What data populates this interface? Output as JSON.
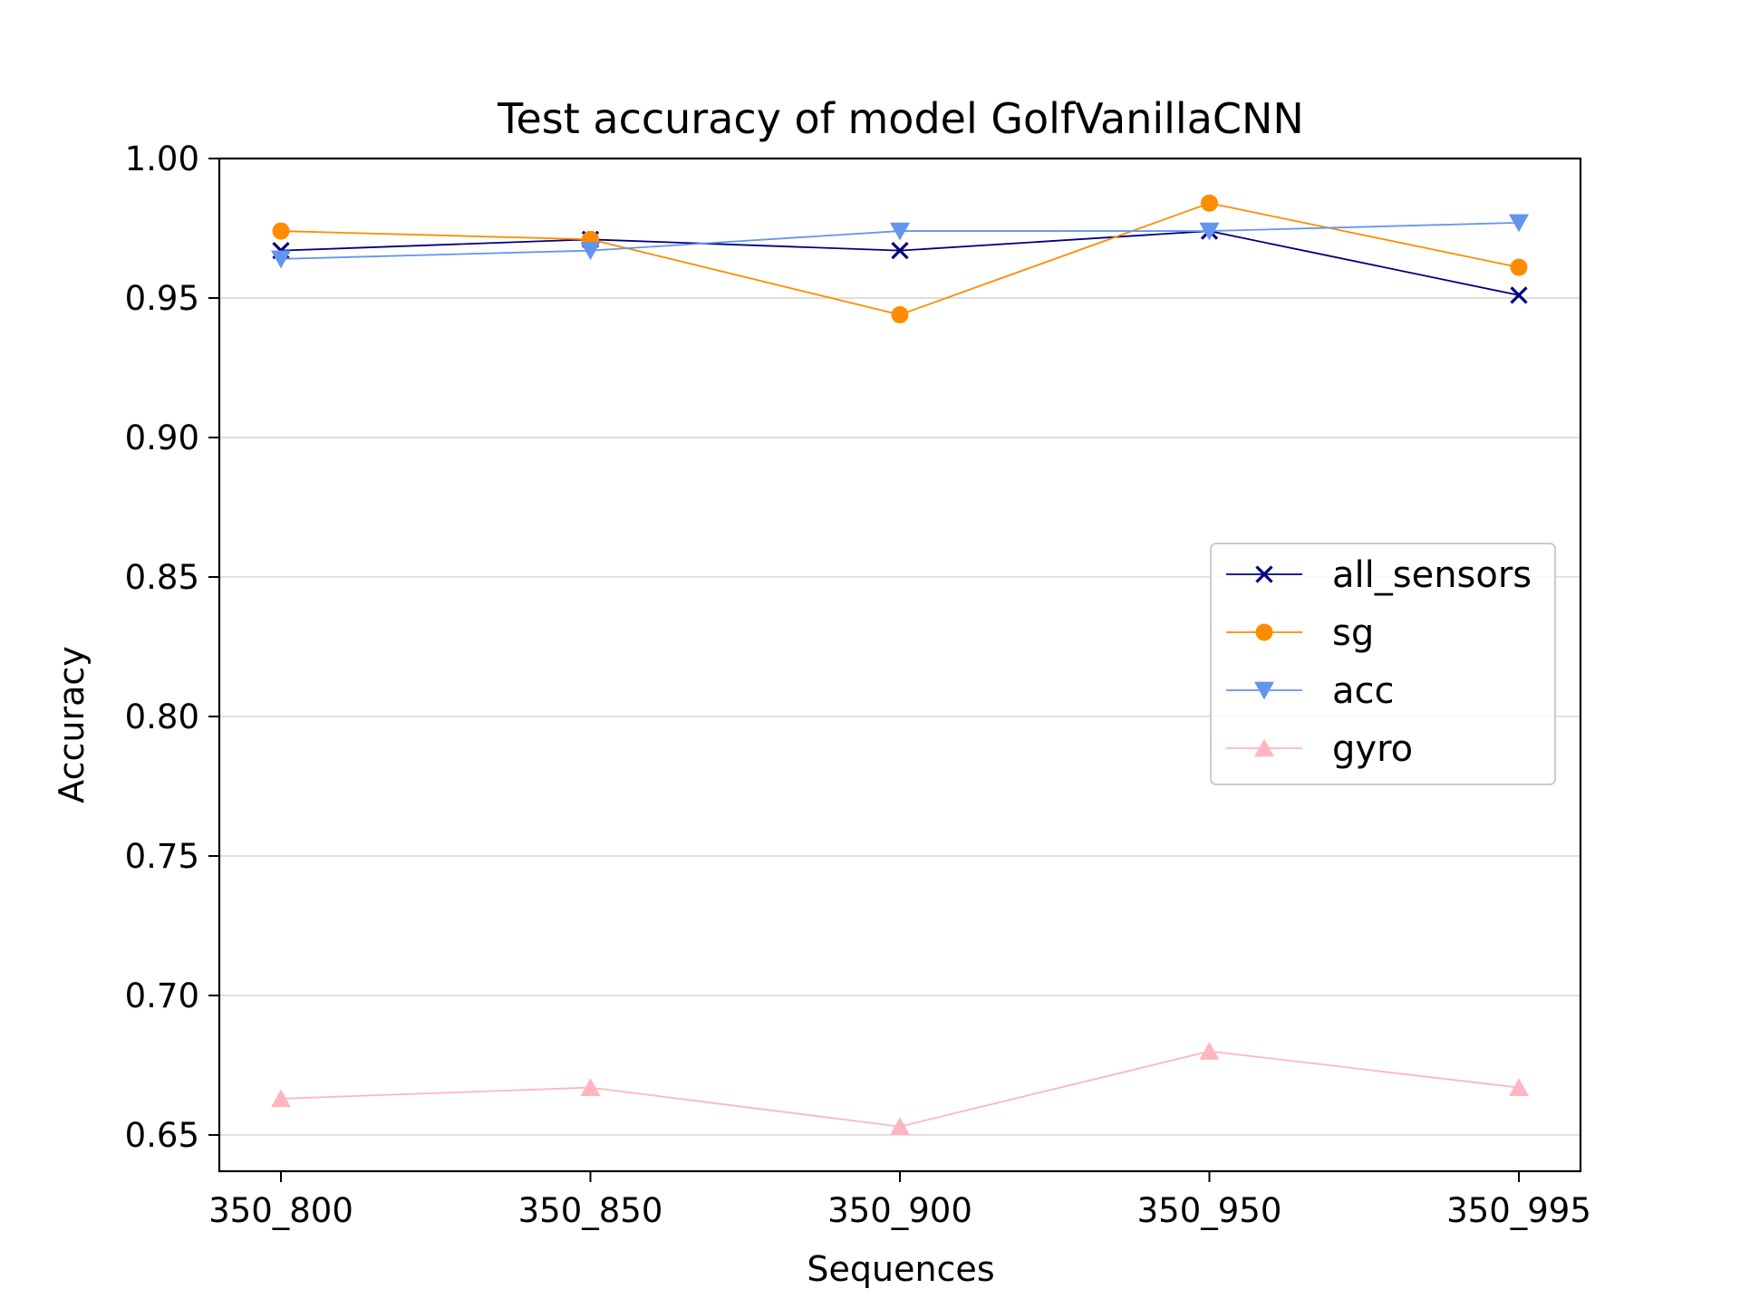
{
  "chart_data": {
    "type": "line",
    "title": "Test accuracy of model GolfVanillaCNN",
    "xlabel": "Sequences",
    "ylabel": "Accuracy",
    "categories": [
      "350_800",
      "350_850",
      "350_900",
      "350_950",
      "350_995"
    ],
    "ylim": [
      0.637,
      1.0
    ],
    "yticks": [
      "0.65",
      "0.70",
      "0.75",
      "0.80",
      "0.85",
      "0.90",
      "0.95",
      "1.00"
    ],
    "grid": "horizontal",
    "legend_position": "center-right",
    "series": [
      {
        "name": "all_sensors",
        "color": "#000080",
        "marker": "x",
        "values": [
          0.967,
          0.971,
          0.967,
          0.974,
          0.951
        ]
      },
      {
        "name": "sg",
        "color": "#ff8c00",
        "marker": "circle",
        "values": [
          0.974,
          0.971,
          0.944,
          0.984,
          0.961
        ]
      },
      {
        "name": "acc",
        "color": "#6495ed",
        "marker": "triangle-down",
        "values": [
          0.964,
          0.967,
          0.974,
          0.974,
          0.977
        ]
      },
      {
        "name": "gyro",
        "color": "#ffb6c1",
        "marker": "triangle-up",
        "values": [
          0.663,
          0.667,
          0.653,
          0.68,
          0.667
        ]
      }
    ]
  }
}
